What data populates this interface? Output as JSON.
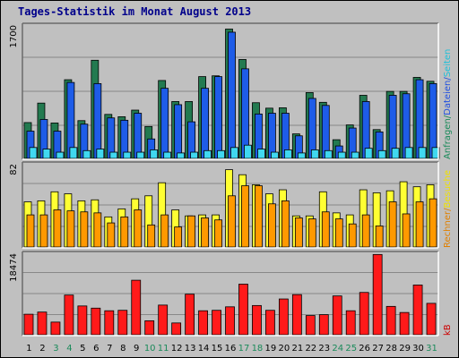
{
  "chart_data": {
    "type": "bar",
    "title": "Tages-Statistik im Monat August 2013",
    "categories": [
      "1",
      "2",
      "3",
      "4",
      "5",
      "6",
      "7",
      "8",
      "9",
      "10",
      "11",
      "12",
      "13",
      "14",
      "15",
      "16",
      "17",
      "18",
      "19",
      "20",
      "21",
      "22",
      "23",
      "24",
      "25",
      "26",
      "27",
      "28",
      "29",
      "30",
      "31"
    ],
    "weekend_days": [
      "3",
      "4",
      "10",
      "11",
      "17",
      "18",
      "24",
      "25",
      "31"
    ],
    "panels": [
      {
        "id": "requests",
        "ymax_label": "1700",
        "ymax": 1700,
        "right_legend": [
          {
            "text": "Anfragen",
            "color": "#1a8a5a"
          },
          {
            "text": "/",
            "color": "#1a8a5a"
          },
          {
            "text": "Dateien",
            "color": "#2050e0"
          },
          {
            "text": "/",
            "color": "#2050e0"
          },
          {
            "text": "Seiten",
            "color": "#20c0d8"
          }
        ],
        "series": [
          {
            "name": "Anfragen",
            "color": "#237a50",
            "values": [
              460,
              710,
              455,
              1010,
              485,
              1260,
              565,
              535,
              620,
              410,
              1000,
              730,
              730,
              1050,
              1060,
              1660,
              1270,
              715,
              645,
              650,
              315,
              845,
              720,
              240,
              430,
              810,
              370,
              860,
              860,
              1040,
              990
            ]
          },
          {
            "name": "Dateien",
            "color": "#1e5ce8",
            "values": [
              350,
              500,
              350,
              975,
              440,
              960,
              520,
              490,
              580,
              250,
              900,
              690,
              470,
              900,
              1050,
              1620,
              1150,
              570,
              580,
              580,
              290,
              770,
              680,
              160,
              390,
              730,
              340,
              810,
              830,
              1010,
              960
            ]
          },
          {
            "name": "Seiten",
            "color": "#40d8f0",
            "values": [
              140,
              120,
              80,
              140,
              100,
              120,
              80,
              80,
              80,
              110,
              80,
              70,
              80,
              100,
              100,
              140,
              170,
              120,
              80,
              110,
              70,
              110,
              100,
              80,
              80,
              130,
              100,
              130,
              140,
              140,
              140
            ]
          }
        ]
      },
      {
        "id": "visits",
        "ymax_label": "82",
        "ymax": 82,
        "right_legend": [
          {
            "text": "Rechner",
            "color": "#e08000"
          },
          {
            "text": "/",
            "color": "#e08000"
          },
          {
            "text": "Besuche",
            "color": "#f0e000"
          }
        ],
        "series": [
          {
            "name": "Besuche",
            "color": "#ffff33",
            "values": [
              45,
              46,
              55,
              53,
              46,
              47,
              30,
              38,
              48,
              51,
              64,
              37,
              31,
              32,
              32,
              77,
              72,
              62,
              53,
              57,
              31,
              31,
              55,
              34,
              32,
              57,
              54,
              56,
              65,
              60,
              62
            ]
          },
          {
            "name": "Rechner",
            "color": "#ff9900",
            "values": [
              32,
              32,
              37,
              36,
              35,
              34,
              24,
              30,
              37,
              22,
              32,
              20,
              31,
              29,
              27,
              51,
              61,
              61,
              43,
              46,
              29,
              28,
              35,
              28,
              23,
              32,
              21,
              45,
              33,
              45,
              48
            ]
          }
        ]
      },
      {
        "id": "kb",
        "ymax_label": "18474",
        "ymax": 18474,
        "right_legend": [
          {
            "text": "kB",
            "color": "#cc0000"
          }
        ],
        "series": [
          {
            "name": "kB",
            "color": "#ff1a1a",
            "values": [
              4700,
              5200,
              2900,
              9100,
              6600,
              6100,
              5500,
              5600,
              12500,
              3200,
              6800,
              2700,
              9300,
              5500,
              5600,
              6400,
              11600,
              6700,
              5600,
              8200,
              9200,
              4400,
              4600,
              8900,
              5500,
              9700,
              18400,
              6500,
              5100,
              11400,
              7200
            ]
          }
        ]
      }
    ]
  }
}
